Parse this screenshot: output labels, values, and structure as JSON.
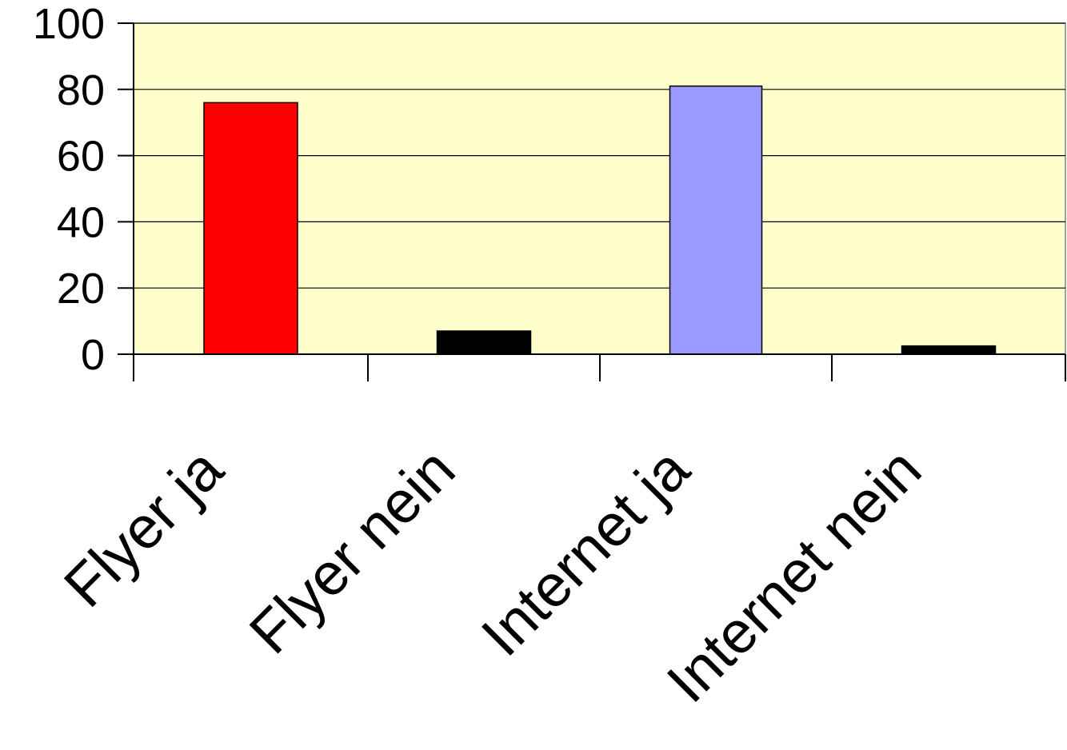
{
  "chart_data": {
    "type": "bar",
    "title": "",
    "xlabel": "",
    "ylabel": "",
    "categories": [
      "Flyer ja",
      "Flyer nein",
      "Internet ja",
      "Internet nein"
    ],
    "values": [
      76,
      7,
      81,
      2.5
    ],
    "bar_colors": [
      "#ff0000",
      "#000000",
      "#9999ff",
      "#000000"
    ],
    "ylim": [
      0,
      100
    ],
    "yticks": [
      0,
      20,
      40,
      60,
      80,
      100
    ],
    "ytick_labels": [
      "0",
      "20",
      "40",
      "60",
      "80",
      "100"
    ],
    "grid": true,
    "legend": "none",
    "plot_background": "#ffffcc",
    "gridline_color": "#000000",
    "axis_color": "#000000"
  }
}
